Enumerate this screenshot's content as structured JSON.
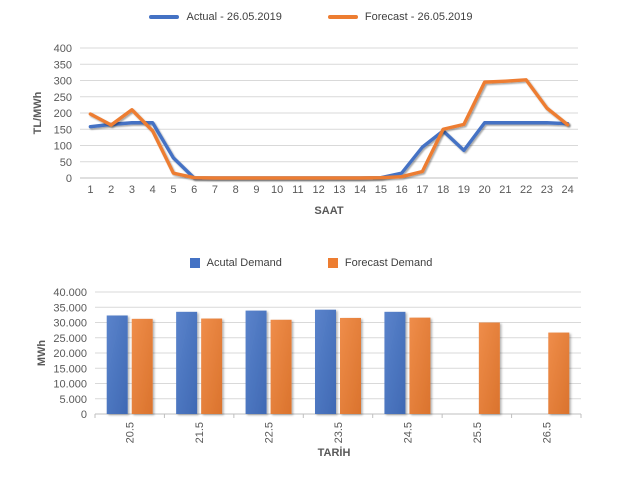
{
  "colors": {
    "actual": "#4472C4",
    "forecast": "#ED7D31",
    "gridline": "#D9D9D9",
    "axis_line": "#BFBFBF",
    "tick_text": "#595959",
    "legend_text": "#404040",
    "axis_title_text": "#595959"
  },
  "chart_data": [
    {
      "type": "line",
      "title": "",
      "legend_position": "top",
      "grid": "horizontal",
      "xlabel": "SAAT",
      "ylabel": "TL/MWh",
      "ylim": [
        0,
        400
      ],
      "ytick_step": 50,
      "yticks": [
        {
          "value": 0,
          "label": "0"
        },
        {
          "value": 50,
          "label": "50"
        },
        {
          "value": 100,
          "label": "100"
        },
        {
          "value": 150,
          "label": "150"
        },
        {
          "value": 200,
          "label": "200"
        },
        {
          "value": 250,
          "label": "250"
        },
        {
          "value": 300,
          "label": "300"
        },
        {
          "value": 350,
          "label": "350"
        },
        {
          "value": 400,
          "label": "400"
        }
      ],
      "categories": [
        "1",
        "2",
        "3",
        "4",
        "5",
        "6",
        "7",
        "8",
        "9",
        "10",
        "11",
        "12",
        "13",
        "14",
        "15",
        "16",
        "17",
        "18",
        "19",
        "20",
        "21",
        "22",
        "23",
        "24"
      ],
      "series": [
        {
          "name": "Actual - 26.05.2019",
          "color": "#4472C4",
          "values": [
            158,
            165,
            170,
            170,
            62,
            0,
            0,
            0,
            0,
            0,
            0,
            0,
            0,
            0,
            1,
            15,
            95,
            145,
            85,
            170,
            170,
            170,
            170,
            167
          ]
        },
        {
          "name": "Forecast - 26.05.2019",
          "color": "#ED7D31",
          "values": [
            197,
            163,
            210,
            145,
            15,
            1,
            0,
            0,
            0,
            0,
            0,
            0,
            0,
            0,
            1,
            4,
            20,
            150,
            165,
            295,
            298,
            302,
            215,
            164
          ]
        }
      ]
    },
    {
      "type": "bar",
      "title": "",
      "legend_position": "top",
      "grid": "horizontal",
      "xlabel": "TARİH",
      "ylabel": "MWh",
      "ylim": [
        0,
        40000
      ],
      "ytick_step": 5000,
      "yticks": [
        {
          "value": 0,
          "label": "0"
        },
        {
          "value": 5000,
          "label": "5.000"
        },
        {
          "value": 10000,
          "label": "10.000"
        },
        {
          "value": 15000,
          "label": "15.000"
        },
        {
          "value": 20000,
          "label": "20.000"
        },
        {
          "value": 25000,
          "label": "25.000"
        },
        {
          "value": 30000,
          "label": "30.000"
        },
        {
          "value": 35000,
          "label": "35.000"
        },
        {
          "value": 40000,
          "label": "40.000"
        }
      ],
      "categories": [
        "20.5",
        "21.5",
        "22.5",
        "23.5",
        "24.5",
        "25.5",
        "26.5"
      ],
      "series": [
        {
          "name": "Acutal Demand",
          "color": "#4472C4",
          "values": [
            32300,
            33500,
            33900,
            34200,
            33500,
            null,
            null
          ]
        },
        {
          "name": "Forecast Demand",
          "color": "#ED7D31",
          "values": [
            31200,
            31300,
            30900,
            31500,
            31600,
            30000,
            26700
          ]
        }
      ]
    }
  ]
}
